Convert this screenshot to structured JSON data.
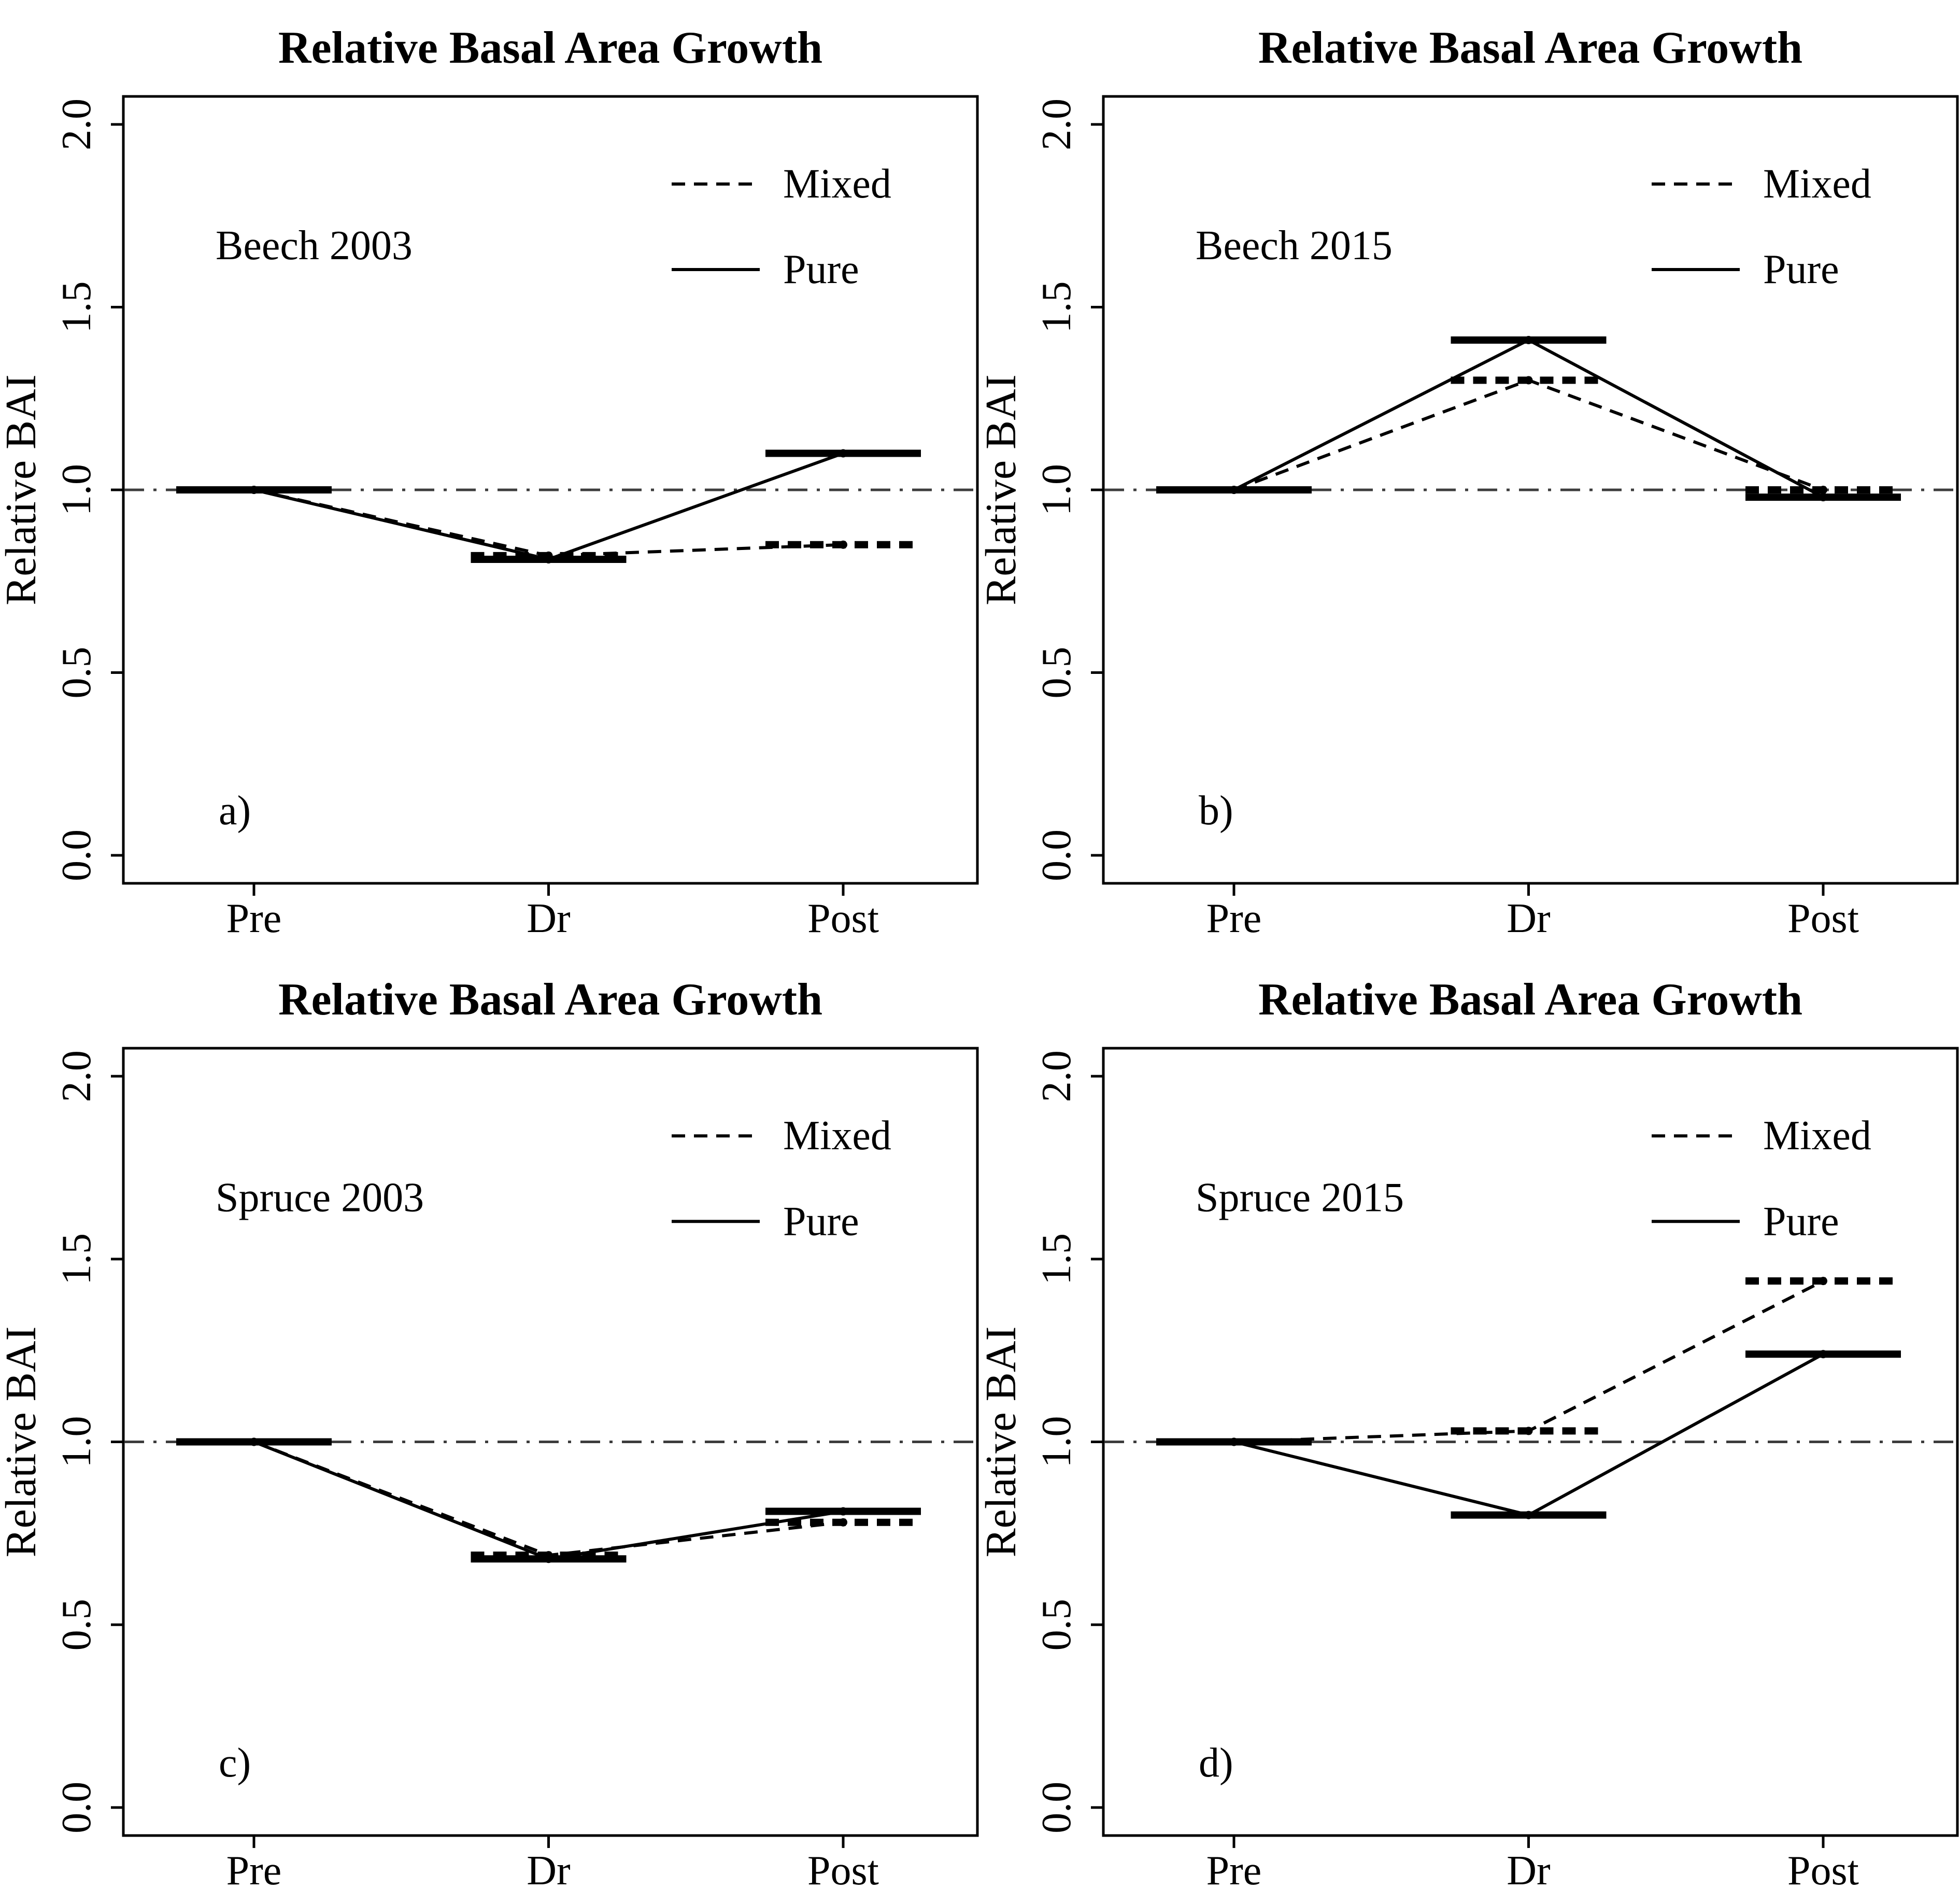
{
  "figure": {
    "background": "#ffffff",
    "ink_color": "#000000",
    "reference_line_color": "#3d3d3d"
  },
  "chart_data": [
    {
      "type": "line",
      "title": "Relative Basal Area Growth",
      "panel_label": "a)",
      "group_label": "Beech 2003",
      "ylabel": "Relative BAI",
      "xlabel": "",
      "categories": [
        "Pre",
        "Dr",
        "Post"
      ],
      "yticks": [
        {
          "label": "0.0",
          "value": 0.0
        },
        {
          "label": "0.5",
          "value": 0.5
        },
        {
          "label": "1.0",
          "value": 1.0
        },
        {
          "label": "1.5",
          "value": 1.5
        },
        {
          "label": "2.0",
          "value": 2.0
        }
      ],
      "ylim": [
        -0.08,
        2.08
      ],
      "grid": "off",
      "legend_position": "top-right",
      "reference_y": 1.0,
      "legend": [
        {
          "name": "Mixed",
          "style": "dashed"
        },
        {
          "name": "Pure",
          "style": "solid"
        }
      ],
      "series": [
        {
          "name": "Mixed",
          "style": "dashed",
          "values": [
            1.0,
            0.82,
            0.85
          ]
        },
        {
          "name": "Pure",
          "style": "solid",
          "values": [
            1.0,
            0.81,
            1.1
          ]
        }
      ]
    },
    {
      "type": "line",
      "title": "Relative Basal Area Growth",
      "panel_label": "b)",
      "group_label": "Beech 2015",
      "ylabel": "Relative BAI",
      "xlabel": "",
      "categories": [
        "Pre",
        "Dr",
        "Post"
      ],
      "yticks": [
        {
          "label": "0.0",
          "value": 0.0
        },
        {
          "label": "0.5",
          "value": 0.5
        },
        {
          "label": "1.0",
          "value": 1.0
        },
        {
          "label": "1.5",
          "value": 1.5
        },
        {
          "label": "2.0",
          "value": 2.0
        }
      ],
      "ylim": [
        -0.08,
        2.08
      ],
      "grid": "off",
      "legend_position": "top-right",
      "reference_y": 1.0,
      "legend": [
        {
          "name": "Mixed",
          "style": "dashed"
        },
        {
          "name": "Pure",
          "style": "solid"
        }
      ],
      "series": [
        {
          "name": "Mixed",
          "style": "dashed",
          "values": [
            1.0,
            1.3,
            1.0
          ]
        },
        {
          "name": "Pure",
          "style": "solid",
          "values": [
            1.0,
            1.41,
            0.98
          ]
        }
      ]
    },
    {
      "type": "line",
      "title": "Relative Basal Area Growth",
      "panel_label": "c)",
      "group_label": "Spruce 2003",
      "ylabel": "Relative BAI",
      "xlabel": "",
      "categories": [
        "Pre",
        "Dr",
        "Post"
      ],
      "yticks": [
        {
          "label": "0.0",
          "value": 0.0
        },
        {
          "label": "0.5",
          "value": 0.5
        },
        {
          "label": "1.0",
          "value": 1.0
        },
        {
          "label": "1.5",
          "value": 1.5
        },
        {
          "label": "2.0",
          "value": 2.0
        }
      ],
      "ylim": [
        -0.08,
        2.08
      ],
      "grid": "off",
      "legend_position": "top-right",
      "reference_y": 1.0,
      "legend": [
        {
          "name": "Mixed",
          "style": "dashed"
        },
        {
          "name": "Pure",
          "style": "solid"
        }
      ],
      "series": [
        {
          "name": "Mixed",
          "style": "dashed",
          "values": [
            1.0,
            0.69,
            0.78
          ]
        },
        {
          "name": "Pure",
          "style": "solid",
          "values": [
            1.0,
            0.68,
            0.81
          ]
        }
      ]
    },
    {
      "type": "line",
      "title": "Relative Basal Area Growth",
      "panel_label": "d)",
      "group_label": "Spruce 2015",
      "ylabel": "Relative BAI",
      "xlabel": "",
      "categories": [
        "Pre",
        "Dr",
        "Post"
      ],
      "yticks": [
        {
          "label": "0.0",
          "value": 0.0
        },
        {
          "label": "0.5",
          "value": 0.5
        },
        {
          "label": "1.0",
          "value": 1.0
        },
        {
          "label": "1.5",
          "value": 1.5
        },
        {
          "label": "2.0",
          "value": 2.0
        }
      ],
      "ylim": [
        -0.08,
        2.08
      ],
      "grid": "off",
      "legend_position": "top-right",
      "reference_y": 1.0,
      "legend": [
        {
          "name": "Mixed",
          "style": "dashed"
        },
        {
          "name": "Pure",
          "style": "solid"
        }
      ],
      "series": [
        {
          "name": "Mixed",
          "style": "dashed",
          "values": [
            1.0,
            1.03,
            1.44
          ]
        },
        {
          "name": "Pure",
          "style": "solid",
          "values": [
            1.0,
            0.8,
            1.24
          ]
        }
      ]
    }
  ]
}
